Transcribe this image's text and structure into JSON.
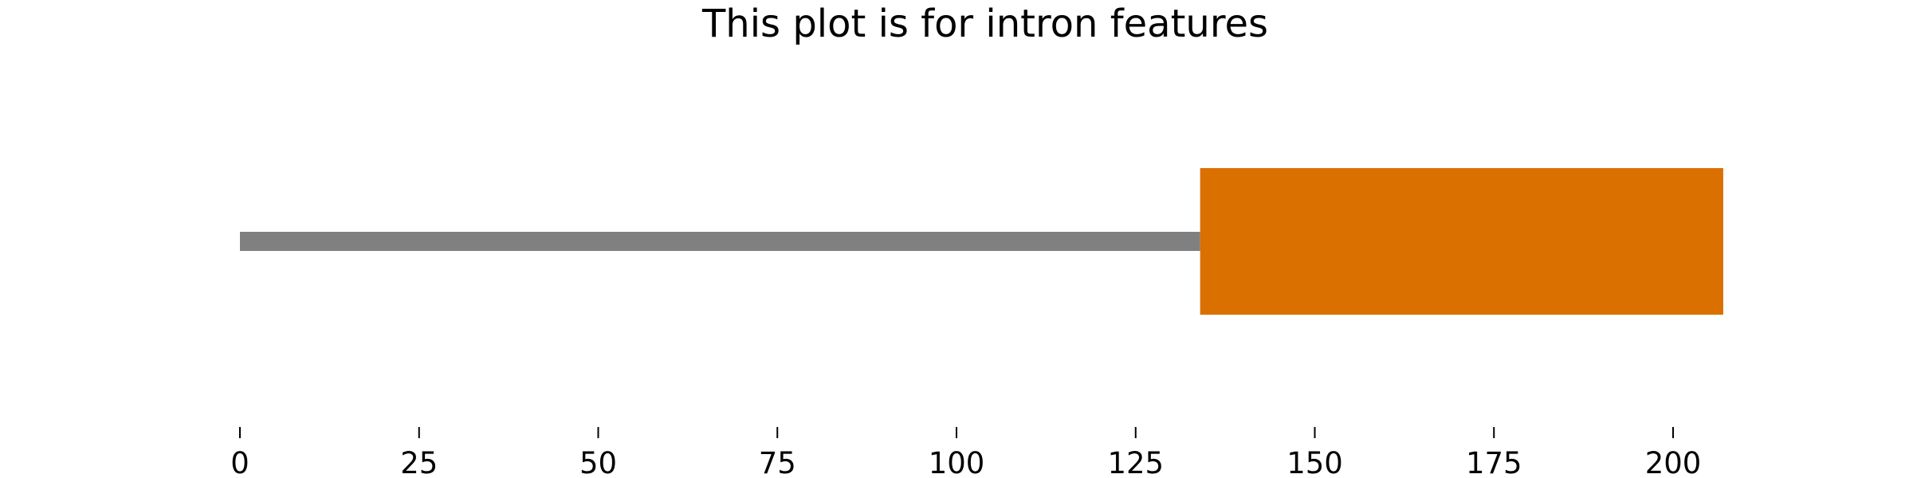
{
  "chart_data": {
    "type": "bar",
    "title": "This plot is for intron features",
    "xlabel": "",
    "ylabel": "",
    "xlim": [
      0,
      208
    ],
    "xticks": [
      0,
      25,
      50,
      75,
      100,
      125,
      150,
      175,
      200
    ],
    "grid": false,
    "track": {
      "start": 0,
      "end": 134
    },
    "features": [
      {
        "start": 134,
        "end": 207
      }
    ],
    "colors": {
      "track": "#808080",
      "feature": "#DA7000"
    }
  }
}
